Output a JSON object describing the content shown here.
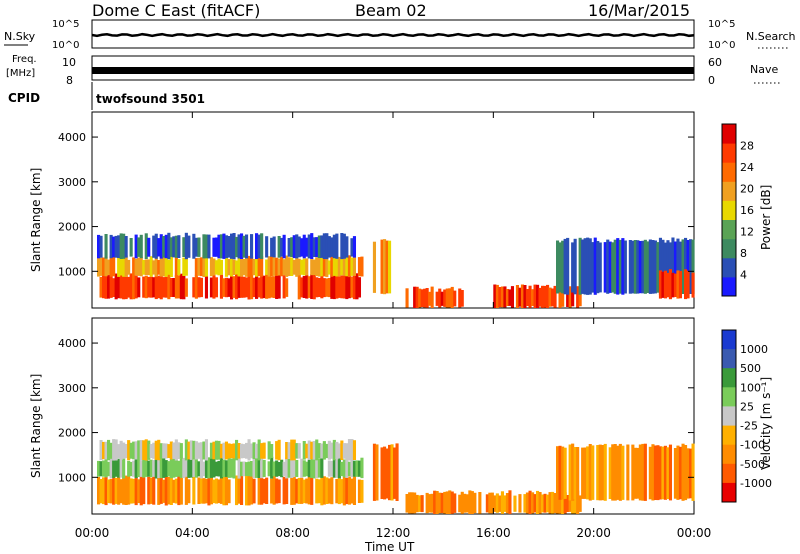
{
  "header": {
    "title": "Dome C East (fitACF)",
    "beam": "Beam 02",
    "date": "16/Mar/2015"
  },
  "noise_panel": {
    "left_label": "N.Sky",
    "left_ticks": [
      "10^5",
      "10^0"
    ],
    "right_label": "N.Search",
    "right_ticks": [
      "10^5",
      "10^0"
    ]
  },
  "freq_panel": {
    "left_label_top": "Freq.",
    "left_label_unit": "[MHz]",
    "left_ticks": [
      "10",
      "8"
    ],
    "right_label": "Nave",
    "right_ticks": [
      "60",
      "0"
    ]
  },
  "cpid": {
    "label": "CPID",
    "program": "twofsound 3501"
  },
  "colors": {
    "power_scale": [
      "#1a1aff",
      "#2a4fb5",
      "#3d8a60",
      "#5aa355",
      "#e8d800",
      "#f0a020",
      "#ff6a00",
      "#ff3a00",
      "#e00000"
    ],
    "velocity_scale": [
      "#e80000",
      "#ff5a00",
      "#ff8c00",
      "#ffb000",
      "#c8c8c8",
      "#7acc5a",
      "#3a9a3a",
      "#3a5ab0",
      "#1a3ad0"
    ]
  },
  "chart_data": [
    {
      "type": "heatmap",
      "title": "Power",
      "ylabel": "Slant Range [km]",
      "yticks": [
        "1000",
        "2000",
        "3000",
        "4000"
      ],
      "colorbar_label": "Power [dB]",
      "colorbar_ticks": [
        "4",
        "8",
        "12",
        "16",
        "20",
        "24",
        "28"
      ],
      "colorbar_range": [
        0,
        30
      ],
      "xlim_hours": [
        0,
        24
      ],
      "ylim_km": [
        180,
        4560
      ],
      "regions": [
        {
          "t0": 0.2,
          "t1": 10.8,
          "r0": 400,
          "r1": 900,
          "level": "high"
        },
        {
          "t0": 0.2,
          "t1": 10.8,
          "r0": 900,
          "r1": 1300,
          "level": "mid"
        },
        {
          "t0": 0.2,
          "t1": 10.5,
          "r0": 1300,
          "r1": 1800,
          "level": "low"
        },
        {
          "t0": 11.2,
          "t1": 12.2,
          "r0": 500,
          "r1": 1700,
          "level": "mid"
        },
        {
          "t0": 12.5,
          "t1": 14.8,
          "r0": 200,
          "r1": 600,
          "level": "high"
        },
        {
          "t0": 16.0,
          "t1": 19.5,
          "r0": 200,
          "r1": 650,
          "level": "high"
        },
        {
          "t0": 18.5,
          "t1": 24.0,
          "r0": 500,
          "r1": 1700,
          "level": "low"
        },
        {
          "t0": 22.5,
          "t1": 24.0,
          "r0": 400,
          "r1": 1000,
          "level": "high"
        }
      ]
    },
    {
      "type": "heatmap",
      "title": "Velocity",
      "ylabel": "Slant Range [km]",
      "yticks": [
        "1000",
        "2000",
        "3000",
        "4000"
      ],
      "colorbar_label": "Velocity [m s⁻¹]",
      "colorbar_ticks": [
        "1000",
        "500",
        "100",
        "25",
        "-25",
        "-100",
        "-500",
        "-1000"
      ],
      "colorbar_range": [
        -1000,
        1000
      ],
      "xlim_hours": [
        0,
        24
      ],
      "ylim_km": [
        180,
        4560
      ],
      "regions": [
        {
          "t0": 0.2,
          "t1": 10.8,
          "r0": 400,
          "r1": 1000,
          "level": "neg"
        },
        {
          "t0": 0.2,
          "t1": 10.8,
          "r0": 1000,
          "r1": 1400,
          "level": "pos"
        },
        {
          "t0": 0.2,
          "t1": 10.5,
          "r0": 1400,
          "r1": 1800,
          "level": "zero"
        },
        {
          "t0": 11.2,
          "t1": 12.2,
          "r0": 500,
          "r1": 1700,
          "level": "neg"
        },
        {
          "t0": 12.5,
          "t1": 19.5,
          "r0": 200,
          "r1": 650,
          "level": "neg"
        },
        {
          "t0": 18.5,
          "t1": 24.0,
          "r0": 500,
          "r1": 1700,
          "level": "neg"
        }
      ]
    }
  ],
  "xaxis": {
    "ticks": [
      "00:00",
      "04:00",
      "08:00",
      "12:00",
      "16:00",
      "20:00",
      "00:00"
    ],
    "label": "Time UT"
  }
}
